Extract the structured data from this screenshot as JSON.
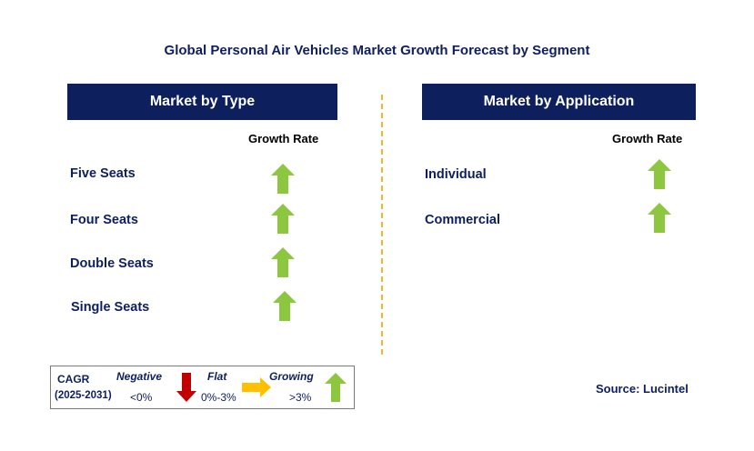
{
  "title": "Global Personal Air Vehicles Market Growth Forecast by Segment",
  "colors": {
    "header_bg": "#0d1f5c",
    "growing": "#8dc63f",
    "flat": "#ffc000",
    "negative": "#c00000",
    "divider": "#f2b632"
  },
  "left_panel": {
    "header": "Market by Type",
    "column_label": "Growth Rate",
    "rows": [
      {
        "label": "Five Seats",
        "trend": "growing",
        "icon": "up-arrow-icon"
      },
      {
        "label": "Four Seats",
        "trend": "growing",
        "icon": "up-arrow-icon"
      },
      {
        "label": "Double Seats",
        "trend": "growing",
        "icon": "up-arrow-icon"
      },
      {
        "label": "Single Seats",
        "trend": "growing",
        "icon": "up-arrow-icon"
      }
    ]
  },
  "right_panel": {
    "header": "Market by Application",
    "column_label": "Growth Rate",
    "rows": [
      {
        "label": "Individual",
        "trend": "growing",
        "icon": "up-arrow-icon"
      },
      {
        "label": "Commercial",
        "trend": "growing",
        "icon": "up-arrow-icon"
      }
    ]
  },
  "legend": {
    "cagr_label": "CAGR",
    "period": "(2025-2031)",
    "negative": {
      "label": "Negative",
      "range": "<0%",
      "icon": "down-arrow-icon"
    },
    "flat": {
      "label": "Flat",
      "range": "0%-3%",
      "icon": "right-arrow-icon"
    },
    "growing": {
      "label": "Growing",
      "range": ">3%",
      "icon": "up-arrow-icon"
    }
  },
  "source": "Source: Lucintel"
}
